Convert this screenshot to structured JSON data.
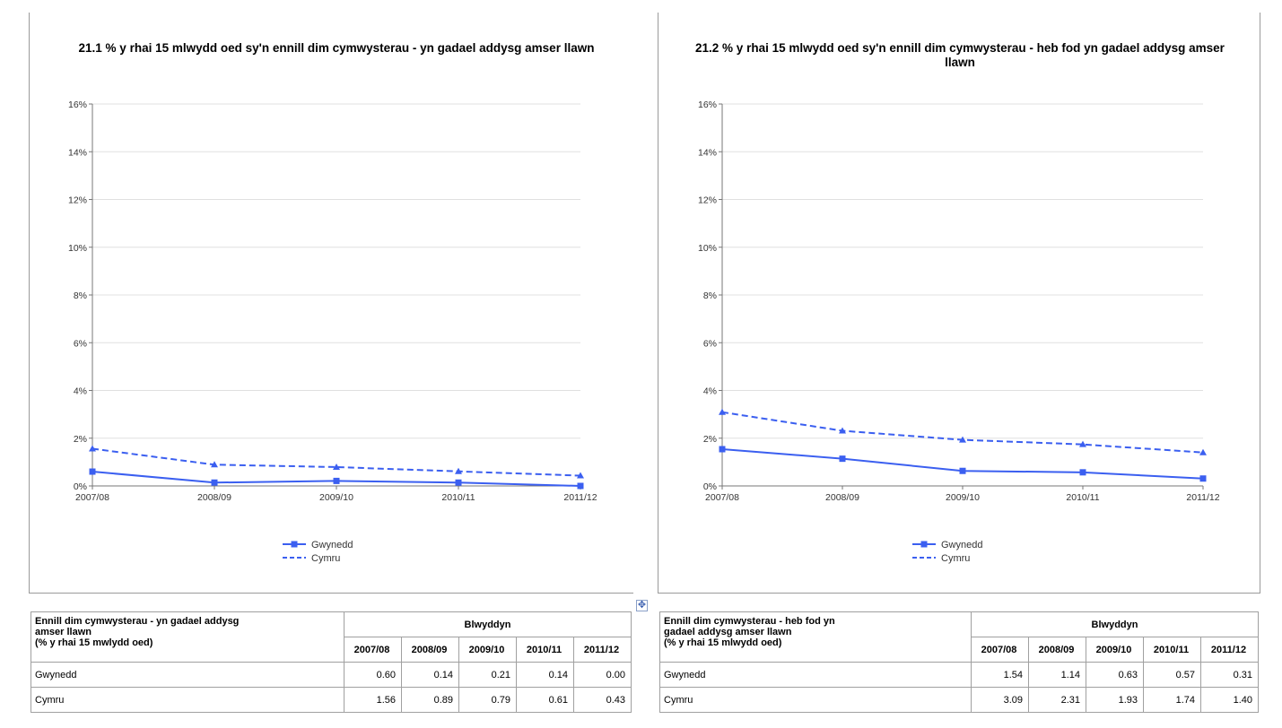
{
  "charts": [
    {
      "id": "1",
      "title": "21.1  % y rhai 15 mlwydd oed sy'n ennill dim cymwysterau - yn gadael addysg amser llawn",
      "table": {
        "header_lines": [
          "Ennill dim cymwysterau - yn gadael addysg",
          "amser llawn",
          "(% y rhai 15 mwlydd oed)"
        ],
        "group_header": "Blwyddyn",
        "years": [
          "2007/08",
          "2008/09",
          "2009/10",
          "2010/11",
          "2011/12"
        ],
        "rows": [
          {
            "label": "Gwynedd",
            "values": [
              "0.60",
              "0.14",
              "0.21",
              "0.14",
              "0.00"
            ]
          },
          {
            "label": "Cymru",
            "values": [
              "1.56",
              "0.89",
              "0.79",
              "0.61",
              "0.43"
            ]
          }
        ]
      }
    },
    {
      "id": "2",
      "title": "21.2  % y rhai 15 mlwydd oed sy'n ennill dim cymwysterau - heb fod yn gadael addysg amser llawn",
      "table": {
        "header_lines": [
          "Ennill dim cymwysterau - heb fod yn",
          "gadael addysg amser llawn",
          "(% y rhai 15 mlwydd oed)"
        ],
        "group_header": "Blwyddyn",
        "years": [
          "2007/08",
          "2008/09",
          "2009/10",
          "2010/11",
          "2011/12"
        ],
        "rows": [
          {
            "label": "Gwynedd",
            "values": [
              "1.54",
              "1.14",
              "0.63",
              "0.57",
              "0.31"
            ]
          },
          {
            "label": "Cymru",
            "values": [
              "3.09",
              "2.31",
              "1.93",
              "1.74",
              "1.40"
            ]
          }
        ]
      }
    }
  ],
  "move_handle_icon": "move-arrows-icon",
  "chart_data": [
    {
      "type": "line",
      "title": "21.1  % y rhai 15 mlwydd oed sy'n ennill dim cymwysterau - yn gadael addysg amser llawn",
      "xlabel": "",
      "ylabel": "",
      "categories": [
        "2007/08",
        "2008/09",
        "2009/10",
        "2010/11",
        "2011/12"
      ],
      "yticks": [
        "0%",
        "2%",
        "4%",
        "6%",
        "8%",
        "10%",
        "12%",
        "14%",
        "16%"
      ],
      "ylim": [
        0,
        16
      ],
      "grid": true,
      "legend_position": "bottom-center",
      "series": [
        {
          "name": "Gwynedd",
          "values": [
            0.6,
            0.14,
            0.21,
            0.14,
            0.0
          ],
          "style": "solid",
          "marker": "square",
          "color": "#3b5ff0"
        },
        {
          "name": "Cymru",
          "values": [
            1.56,
            0.89,
            0.79,
            0.61,
            0.43
          ],
          "style": "dashed",
          "marker": "triangle",
          "color": "#3b5ff0"
        }
      ]
    },
    {
      "type": "line",
      "title": "21.2  % y rhai 15 mlwydd oed sy'n ennill dim cymwysterau - heb fod yn gadael addysg amser llawn",
      "xlabel": "",
      "ylabel": "",
      "categories": [
        "2007/08",
        "2008/09",
        "2009/10",
        "2010/11",
        "2011/12"
      ],
      "yticks": [
        "0%",
        "2%",
        "4%",
        "6%",
        "8%",
        "10%",
        "12%",
        "14%",
        "16%"
      ],
      "ylim": [
        0,
        16
      ],
      "grid": true,
      "legend_position": "bottom-center",
      "series": [
        {
          "name": "Gwynedd",
          "values": [
            1.54,
            1.14,
            0.63,
            0.57,
            0.31
          ],
          "style": "solid",
          "marker": "square",
          "color": "#3b5ff0"
        },
        {
          "name": "Cymru",
          "values": [
            3.09,
            2.31,
            1.93,
            1.74,
            1.4
          ],
          "style": "dashed",
          "marker": "triangle",
          "color": "#3b5ff0"
        }
      ]
    }
  ]
}
